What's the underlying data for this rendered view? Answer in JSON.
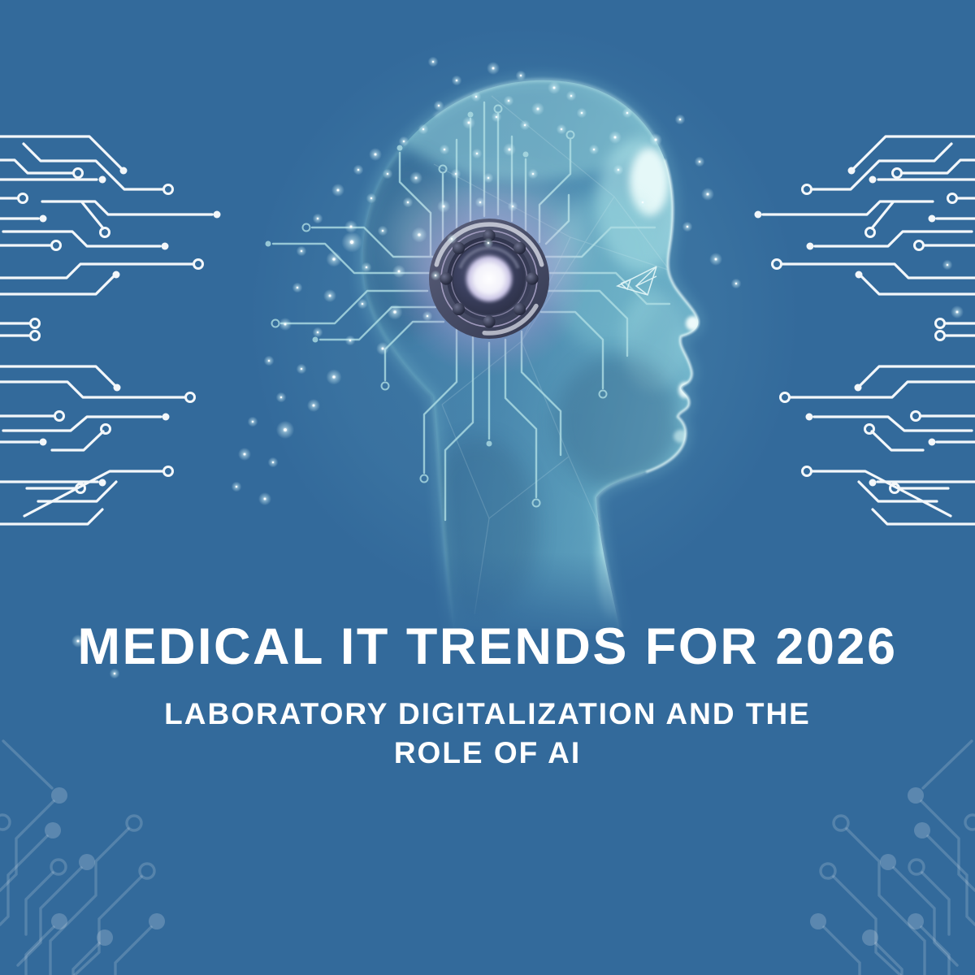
{
  "heading": {
    "title": "MEDICAL IT TRENDS FOR 2026",
    "subtitle": "LABORATORY DIGITALIZATION AND THE ROLE OF AI",
    "subtitle_lines": [
      "LABORATORY DIGITALIZATION AND THE",
      "ROLE OF AI"
    ]
  },
  "illustration": {
    "icons": [
      "circuit-board-pattern-left",
      "circuit-board-pattern-right",
      "circuit-board-pattern-bottom-left",
      "circuit-board-pattern-bottom-right",
      "ai-head-profile",
      "brain-core-hub-icon",
      "head-circuit-traces",
      "wireframe-eye-icon",
      "sparkles"
    ]
  },
  "colors": {
    "background": "#336A9B",
    "heading_text": "#FFFFFF",
    "circuit_white": "#F3F7FA",
    "circuit_faint": "#4C7DA9",
    "head_glow_cyan": "#9FE3E8",
    "hub_glow_purple": "#A391C9",
    "hub_ring_dark": "#474C66",
    "hub_core_light": "#F4F3FC"
  }
}
